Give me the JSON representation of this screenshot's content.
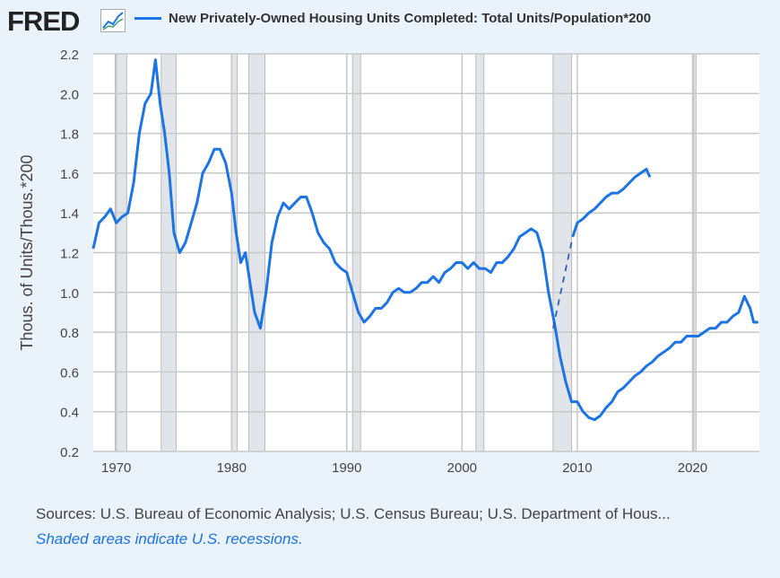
{
  "header": {
    "logo": "FRED",
    "legend_label": "New Privately-Owned Housing Units Completed: Total Units/Population*200"
  },
  "footer": {
    "sources": "Sources: U.S. Bureau of Economic Analysis; U.S. Census Bureau; U.S. Department of Hous...",
    "note": "Shaded areas indicate U.S. recessions."
  },
  "colors": {
    "line": "#1a73e8",
    "trend": "#2d5fc4",
    "recession": "#e1e5ea",
    "grid": "#c8c8c8"
  },
  "chart_data": {
    "type": "line",
    "title": "New Privately-Owned Housing Units Completed: Total Units/Population*200",
    "ylabel": "Thous. of Units/Thous.*200",
    "xlim": [
      1968,
      2025.8
    ],
    "ylim": [
      0.2,
      2.2
    ],
    "xticks": [
      1970,
      1980,
      1990,
      2000,
      2010,
      2020
    ],
    "yticks": [
      0.2,
      0.4,
      0.6,
      0.8,
      1.0,
      1.2,
      1.4,
      1.6,
      1.8,
      2.0,
      2.2
    ],
    "ytick_labels": [
      "0.2",
      "0.4",
      "0.6",
      "0.8",
      "1.0",
      "1.2",
      "1.4",
      "1.6",
      "1.8",
      "2.0",
      "2.2"
    ],
    "grid": true,
    "recessions": [
      [
        1969.9,
        1970.9
      ],
      [
        1973.9,
        1975.2
      ],
      [
        1980.0,
        1980.5
      ],
      [
        1981.5,
        1982.9
      ],
      [
        1990.5,
        1991.2
      ],
      [
        2001.2,
        2001.9
      ],
      [
        2007.9,
        2009.5
      ],
      [
        2020.1,
        2020.3
      ]
    ],
    "series": [
      {
        "name": "New Privately-Owned Housing Units Completed: Total Units/Population*200",
        "style": "solid",
        "x": [
          1968,
          1968.5,
          1969,
          1969.5,
          1970,
          1970.5,
          1971,
          1971.5,
          1972,
          1972.5,
          1973,
          1973.4,
          1973.8,
          1974.2,
          1974.6,
          1975,
          1975.5,
          1976,
          1976.5,
          1977,
          1977.5,
          1978,
          1978.5,
          1979,
          1979.5,
          1980,
          1980.4,
          1980.8,
          1981.2,
          1981.6,
          1982,
          1982.5,
          1983,
          1983.5,
          1984,
          1984.5,
          1985,
          1985.5,
          1986,
          1986.5,
          1987,
          1987.5,
          1988,
          1988.5,
          1989,
          1989.5,
          1990,
          1990.5,
          1991,
          1991.5,
          1992,
          1992.5,
          1993,
          1993.5,
          1994,
          1994.5,
          1995,
          1995.5,
          1996,
          1996.5,
          1997,
          1997.5,
          1998,
          1998.5,
          1999,
          1999.5,
          2000,
          2000.5,
          2001,
          2001.5,
          2002,
          2002.5,
          2003,
          2003.5,
          2004,
          2004.5,
          2005,
          2005.5,
          2006,
          2006.5,
          2007,
          2007.5,
          2008,
          2008.5,
          2009,
          2009.5,
          2010,
          2010.5,
          2011,
          2011.5,
          2012,
          2012.5,
          2013,
          2013.5,
          2014,
          2014.5,
          2015,
          2015.5,
          2016,
          2016.5,
          2017,
          2017.5,
          2018,
          2018.5,
          2019,
          2019.5,
          2020,
          2020.5,
          2021,
          2021.5,
          2022,
          2022.5,
          2023,
          2023.5,
          2024,
          2024.5,
          2025,
          2025.3,
          2025.7
        ],
        "y": [
          1.22,
          1.35,
          1.38,
          1.42,
          1.35,
          1.38,
          1.4,
          1.55,
          1.8,
          1.95,
          2.0,
          2.17,
          1.95,
          1.8,
          1.6,
          1.3,
          1.2,
          1.25,
          1.35,
          1.45,
          1.6,
          1.65,
          1.72,
          1.72,
          1.65,
          1.5,
          1.3,
          1.15,
          1.2,
          1.05,
          0.9,
          0.82,
          1.0,
          1.25,
          1.38,
          1.45,
          1.42,
          1.45,
          1.48,
          1.48,
          1.4,
          1.3,
          1.25,
          1.22,
          1.15,
          1.12,
          1.1,
          1.0,
          0.9,
          0.85,
          0.88,
          0.92,
          0.92,
          0.95,
          1.0,
          1.02,
          1.0,
          1.0,
          1.02,
          1.05,
          1.05,
          1.08,
          1.05,
          1.1,
          1.12,
          1.15,
          1.15,
          1.12,
          1.15,
          1.12,
          1.12,
          1.1,
          1.15,
          1.15,
          1.18,
          1.22,
          1.28,
          1.3,
          1.32,
          1.3,
          1.2,
          1.0,
          0.85,
          0.68,
          0.55,
          0.45,
          0.45,
          0.4,
          0.37,
          0.36,
          0.38,
          0.42,
          0.45,
          0.5,
          0.52,
          0.55,
          0.58,
          0.6,
          0.63,
          0.65,
          0.68,
          0.7,
          0.72,
          0.75,
          0.75,
          0.78,
          0.78,
          0.78,
          0.8,
          0.82,
          0.82,
          0.85,
          0.85,
          0.88,
          0.9,
          0.98,
          0.92,
          0.85,
          0.85
        ]
      },
      {
        "name": "",
        "style": "dashed",
        "x": [
          2007.9,
          2009.6
        ],
        "y": [
          0.82,
          1.28
        ]
      },
      {
        "name": "",
        "style": "solid",
        "x": [
          2009.6,
          2010,
          2010.5,
          2011,
          2011.5,
          2012,
          2012.5,
          2013,
          2013.5,
          2014,
          2014.5,
          2015,
          2015.5,
          2016,
          2016.3
        ],
        "y": [
          1.28,
          1.35,
          1.37,
          1.4,
          1.42,
          1.45,
          1.48,
          1.5,
          1.5,
          1.52,
          1.55,
          1.58,
          1.6,
          1.62,
          1.58
        ]
      }
    ]
  }
}
